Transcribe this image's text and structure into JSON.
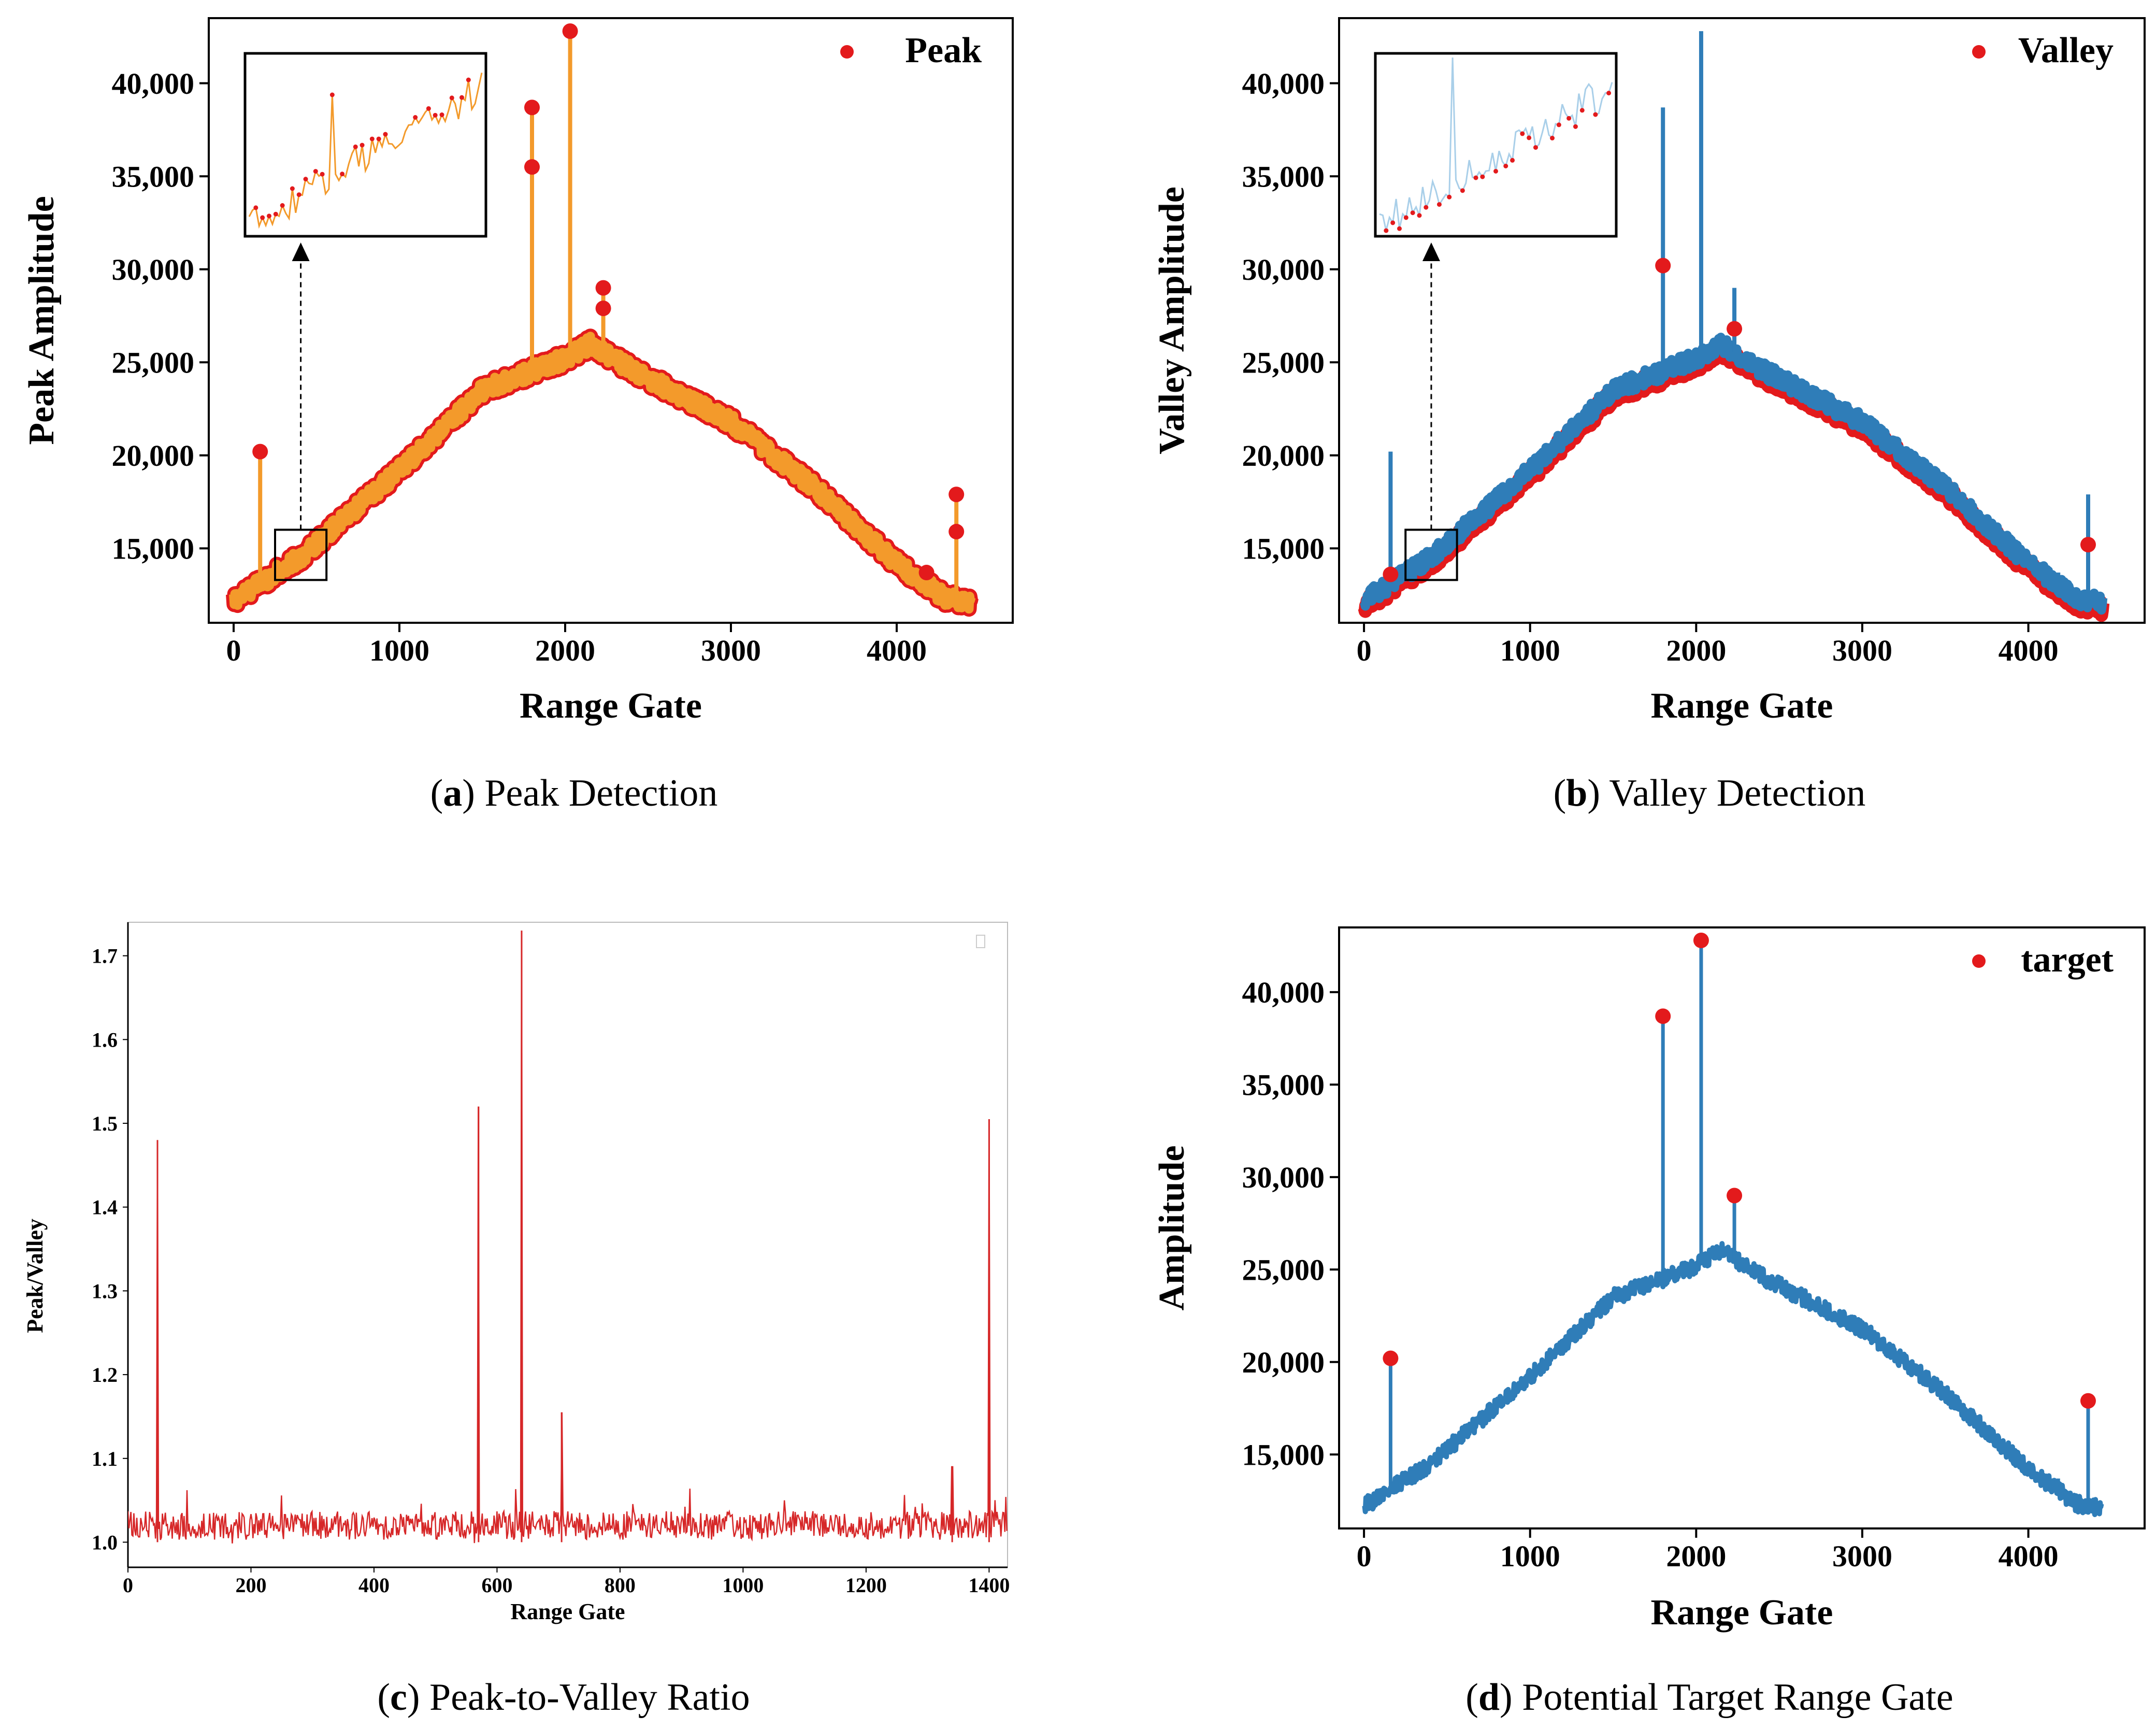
{
  "colors": {
    "peak_red": "#e31a1c",
    "orange": "#f39a2b",
    "blue": "#2f7db8",
    "light_blue": "#a9cfe9",
    "ratio_red": "#d62728",
    "axis": "#000000"
  },
  "chart_data": [
    {
      "id": "a",
      "type": "line",
      "panel_letter": "a",
      "caption": "Peak Detection",
      "xlabel": "Range Gate",
      "ylabel": "Peak Amplitude",
      "xlim": [
        -150,
        4700
      ],
      "ylim": [
        11000,
        43500
      ],
      "xticks": [
        0,
        1000,
        2000,
        3000,
        4000
      ],
      "xtick_labels": [
        "0",
        "1000",
        "2000",
        "3000",
        "4000"
      ],
      "yticks": [
        15000,
        20000,
        25000,
        30000,
        35000,
        40000
      ],
      "ytick_labels": [
        "15,000",
        "20,000",
        "25,000",
        "30,000",
        "35,000",
        "40,000"
      ],
      "legend": {
        "label": "Peak",
        "placement": "top-right"
      },
      "series": [
        {
          "name": "Amplitude",
          "style": "line",
          "color": "orange",
          "baseline": [
            [
              0,
              12200
            ],
            [
              400,
              14500
            ],
            [
              1000,
              19200
            ],
            [
              1500,
              23500
            ],
            [
              2000,
              25200
            ],
            [
              2150,
              26000
            ],
            [
              2400,
              24600
            ],
            [
              3000,
              21800
            ],
            [
              3500,
              18300
            ],
            [
              4000,
              14200
            ],
            [
              4300,
              12300
            ],
            [
              4450,
              12100
            ]
          ],
          "spikes": [
            [
              160,
              20200
            ],
            [
              1800,
              38700
            ],
            [
              2030,
              42800
            ],
            [
              2230,
              29000
            ],
            [
              4180,
              13700
            ],
            [
              4360,
              17900
            ]
          ]
        },
        {
          "name": "Peak",
          "style": "markers",
          "color": "peak_red",
          "points": [
            [
              160,
              20200
            ],
            [
              1800,
              38700
            ],
            [
              1800,
              35500
            ],
            [
              2030,
              42800
            ],
            [
              2230,
              29000
            ],
            [
              2230,
              27900
            ],
            [
              4180,
              13700
            ],
            [
              4360,
              17900
            ],
            [
              4360,
              15900
            ]
          ]
        }
      ],
      "zoom_region": {
        "x": [
          250,
          560
        ],
        "y": [
          13300,
          16000
        ]
      },
      "inset": {
        "x": [
          250,
          560
        ],
        "y": [
          13300,
          16000
        ]
      }
    },
    {
      "id": "b",
      "type": "line",
      "panel_letter": "b",
      "caption": "Valley Detection",
      "xlabel": "Range Gate",
      "ylabel": "Valley Amplitude",
      "xlim": [
        -150,
        4700
      ],
      "ylim": [
        11000,
        43500
      ],
      "xticks": [
        0,
        1000,
        2000,
        3000,
        4000
      ],
      "xtick_labels": [
        "0",
        "1000",
        "2000",
        "3000",
        "4000"
      ],
      "yticks": [
        15000,
        20000,
        25000,
        30000,
        35000,
        40000
      ],
      "ytick_labels": [
        "15,000",
        "20,000",
        "25,000",
        "30,000",
        "35,000",
        "40,000"
      ],
      "legend": {
        "label": "Valley",
        "placement": "top-right"
      },
      "series": [
        {
          "name": "Amplitude",
          "style": "line",
          "color": "blue",
          "baseline": [
            [
              0,
              12200
            ],
            [
              400,
              14500
            ],
            [
              1000,
              19200
            ],
            [
              1500,
              23500
            ],
            [
              2000,
              25200
            ],
            [
              2150,
              26000
            ],
            [
              2400,
              24600
            ],
            [
              3000,
              21800
            ],
            [
              3500,
              18300
            ],
            [
              4000,
              14200
            ],
            [
              4300,
              12300
            ],
            [
              4450,
              12100
            ]
          ],
          "spikes": [
            [
              160,
              20200
            ],
            [
              1800,
              38700
            ],
            [
              2030,
              42800
            ],
            [
              2230,
              29000
            ],
            [
              4180,
              13700
            ],
            [
              4360,
              17900
            ]
          ]
        },
        {
          "name": "Valley",
          "style": "markers",
          "color": "peak_red",
          "points": [
            [
              1800,
              30200
            ],
            [
              2230,
              26800
            ],
            [
              4360,
              15200
            ],
            [
              160,
              13600
            ]
          ]
        }
      ],
      "zoom_region": {
        "x": [
          250,
          560
        ],
        "y": [
          13300,
          16000
        ]
      },
      "inset": {
        "x": [
          250,
          560
        ],
        "y": [
          13300,
          16000
        ]
      }
    },
    {
      "id": "c",
      "type": "line",
      "panel_letter": "c",
      "caption": "Peak-to-Valley Ratio",
      "xlabel": "Range Gate",
      "ylabel": "Peak/Valley",
      "xlim": [
        0,
        1430
      ],
      "ylim": [
        0.97,
        1.74
      ],
      "xticks": [
        0,
        200,
        400,
        600,
        800,
        1000,
        1200,
        1400
      ],
      "xtick_labels": [
        "0",
        "200",
        "400",
        "600",
        "800",
        "1000",
        "1200",
        "1400"
      ],
      "yticks": [
        1.0,
        1.1,
        1.2,
        1.3,
        1.4,
        1.5,
        1.6,
        1.7
      ],
      "ytick_labels": [
        "1.0",
        "1.1",
        "1.2",
        "1.3",
        "1.4",
        "1.5",
        "1.6",
        "1.7"
      ],
      "series": [
        {
          "name": "Peak/Valley",
          "style": "line",
          "color": "ratio_red",
          "baseline": [
            [
              0,
              1.02
            ],
            [
              1430,
              1.02
            ]
          ],
          "spikes": [
            [
              48,
              1.48
            ],
            [
              570,
              1.52
            ],
            [
              640,
              1.73
            ],
            [
              705,
              1.155
            ],
            [
              1400,
              1.505
            ],
            [
              1340,
              1.09
            ]
          ]
        }
      ]
    },
    {
      "id": "d",
      "type": "line",
      "panel_letter": "d",
      "caption": "Potential Target Range Gate",
      "xlabel": "Range Gate",
      "ylabel": "Amplitude",
      "xlim": [
        -150,
        4700
      ],
      "ylim": [
        11000,
        43500
      ],
      "xticks": [
        0,
        1000,
        2000,
        3000,
        4000
      ],
      "xtick_labels": [
        "0",
        "1000",
        "2000",
        "3000",
        "4000"
      ],
      "yticks": [
        15000,
        20000,
        25000,
        30000,
        35000,
        40000
      ],
      "ytick_labels": [
        "15,000",
        "20,000",
        "25,000",
        "30,000",
        "35,000",
        "40,000"
      ],
      "legend": {
        "label": "target",
        "placement": "top-right"
      },
      "series": [
        {
          "name": "Amplitude",
          "style": "line",
          "color": "blue",
          "baseline": [
            [
              0,
              12200
            ],
            [
              400,
              14500
            ],
            [
              1000,
              19200
            ],
            [
              1500,
              23500
            ],
            [
              2000,
              25200
            ],
            [
              2150,
              26000
            ],
            [
              2400,
              24600
            ],
            [
              3000,
              21800
            ],
            [
              3500,
              18300
            ],
            [
              4000,
              14200
            ],
            [
              4300,
              12300
            ],
            [
              4450,
              12100
            ]
          ],
          "spikes": [
            [
              160,
              20200
            ],
            [
              1800,
              38700
            ],
            [
              2030,
              42800
            ],
            [
              2230,
              29000
            ],
            [
              4180,
              13700
            ],
            [
              4360,
              17900
            ]
          ]
        },
        {
          "name": "target",
          "style": "markers",
          "color": "peak_red",
          "points": [
            [
              160,
              20200
            ],
            [
              1800,
              38700
            ],
            [
              2030,
              42800
            ],
            [
              2230,
              29000
            ],
            [
              4360,
              17900
            ]
          ]
        }
      ]
    }
  ]
}
